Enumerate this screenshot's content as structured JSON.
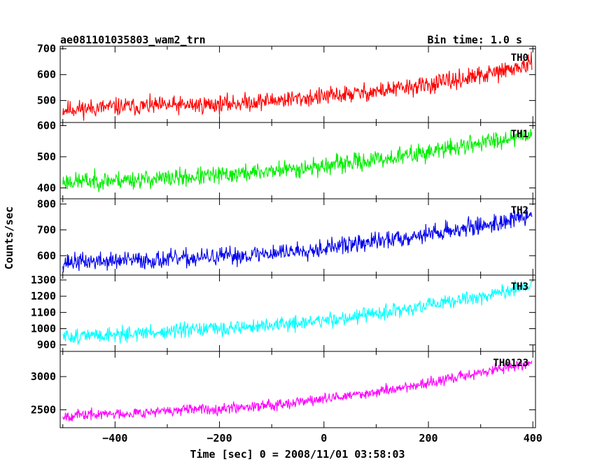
{
  "header": {
    "object_name": "ae081101035803_wam2_trn",
    "bin_time": "Bin time: 1.0 s"
  },
  "chart_data": {
    "type": "line",
    "title": "ae081101035803_wam2_trn",
    "xlabel": "Time [sec] 0 = 2008/11/01 03:58:03",
    "ylabel": "Counts/sec",
    "xlim": [
      -505,
      405
    ],
    "x_ticks": [
      -400,
      -200,
      0,
      200,
      400
    ],
    "x_tick_labels": [
      "−400",
      "−200",
      "0",
      "200",
      "400"
    ],
    "grid": false,
    "legend": "none",
    "panels": [
      {
        "name": "TH0",
        "color": "#ff0000",
        "ylim": [
          415,
          710
        ],
        "y_ticks": [
          500,
          600,
          700
        ],
        "y_tick_labels": [
          "500",
          "600",
          "700"
        ],
        "x": [
          -500,
          -400,
          -300,
          -200,
          -100,
          0,
          100,
          200,
          300,
          400
        ],
        "y": [
          465,
          475,
          480,
          485,
          500,
          515,
          535,
          560,
          595,
          640
        ],
        "noise": 30,
        "seed": 11
      },
      {
        "name": "TH1",
        "color": "#00ee00",
        "ylim": [
          365,
          610
        ],
        "y_ticks": [
          400,
          500,
          600
        ],
        "y_tick_labels": [
          "400",
          "500",
          "600"
        ],
        "x": [
          -500,
          -400,
          -300,
          -200,
          -100,
          0,
          100,
          200,
          300,
          400
        ],
        "y": [
          420,
          425,
          430,
          440,
          455,
          470,
          490,
          515,
          545,
          575
        ],
        "noise": 25,
        "seed": 23
      },
      {
        "name": "TH2",
        "color": "#0000ee",
        "ylim": [
          525,
          820
        ],
        "y_ticks": [
          600,
          700,
          800
        ],
        "y_tick_labels": [
          "600",
          "700",
          "800"
        ],
        "x": [
          -500,
          -400,
          -300,
          -200,
          -100,
          0,
          100,
          200,
          300,
          400
        ],
        "y": [
          575,
          580,
          585,
          595,
          610,
          630,
          655,
          685,
          715,
          755
        ],
        "noise": 30,
        "seed": 37
      },
      {
        "name": "TH3",
        "color": "#00ffff",
        "ylim": [
          860,
          1330
        ],
        "y_ticks": [
          900,
          1000,
          1100,
          1200,
          1300
        ],
        "y_tick_labels": [
          "900",
          "1000",
          "1100",
          "1200",
          "1300"
        ],
        "x": [
          -500,
          -400,
          -300,
          -200,
          -100,
          0,
          100,
          200,
          300,
          400
        ],
        "y": [
          950,
          965,
          980,
          1000,
          1020,
          1050,
          1090,
          1140,
          1200,
          1260
        ],
        "noise": 40,
        "seed": 51
      },
      {
        "name": "TH0123",
        "color": "#ff00ff",
        "ylim": [
          2230,
          3380
        ],
        "y_ticks": [
          2500,
          3000
        ],
        "y_tick_labels": [
          "2500",
          "3000"
        ],
        "x": [
          -500,
          -400,
          -300,
          -200,
          -100,
          0,
          100,
          200,
          300,
          400
        ],
        "y": [
          2410,
          2440,
          2480,
          2520,
          2580,
          2660,
          2770,
          2900,
          3060,
          3220
        ],
        "noise": 70,
        "seed": 67
      }
    ]
  }
}
